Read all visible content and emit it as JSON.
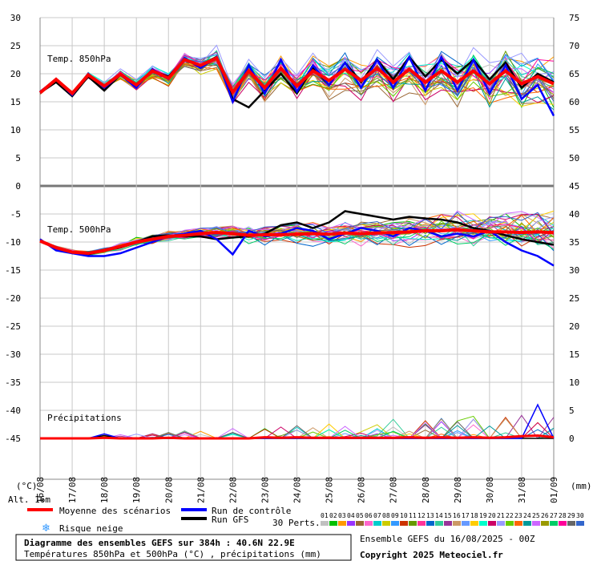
{
  "chart_data": {
    "type": "line",
    "title": "Diagramme des ensembles GEFS sur 384h : 40.6N 22.9E",
    "subtitle": "Températures 850hPa et 500hPa (°C) , précipitations (mm)",
    "run_info": "Ensemble GEFS du 16/08/2025 - 00Z",
    "copyright": "Copyright 2025 Meteociel.fr",
    "altitude": "Alt. 16m",
    "unit_left": "(°C)",
    "unit_right": "(mm)",
    "panel_labels": {
      "t850": "Temp. 850hPa",
      "t500": "Temp. 500hPa",
      "precip": "Précipitations"
    },
    "x_ticks": [
      "16/08",
      "17/08",
      "18/08",
      "19/08",
      "20/08",
      "21/08",
      "22/08",
      "23/08",
      "24/08",
      "25/08",
      "26/08",
      "27/08",
      "28/08",
      "29/08",
      "30/08",
      "31/08",
      "01/09"
    ],
    "x_range_hours": [
      0,
      384
    ],
    "y_left_ticks": [
      30,
      25,
      20,
      15,
      10,
      5,
      0,
      -5,
      -10,
      -15,
      -20,
      -25,
      -30,
      -35,
      -40,
      -45
    ],
    "y_left_range": [
      -45,
      30
    ],
    "y_right_ticks": [
      75,
      70,
      65,
      60,
      55,
      50,
      45,
      40,
      35,
      30,
      25,
      20,
      15,
      10,
      5,
      0
    ],
    "y_right_range": [
      0,
      75
    ],
    "grid": true,
    "series": [
      {
        "name": "Moyenne des scénarios",
        "color": "#ff0000",
        "t850": [
          16.6,
          19,
          16.5,
          19.8,
          17.8,
          19.9,
          18,
          20.5,
          19.2,
          22.5,
          21.5,
          22.8,
          16.7,
          20.5,
          17.5,
          21,
          17.8,
          20.5,
          18.8,
          20.8,
          18.8,
          21,
          18.5,
          20.8,
          18.5,
          20.5,
          18.5,
          20.5,
          18.2,
          20.5,
          18.2,
          19.5,
          18.2
        ],
        "t500": [
          -9.8,
          -11,
          -11.8,
          -12,
          -11.5,
          -10.8,
          -10,
          -9.5,
          -9,
          -8.8,
          -8.5,
          -8.3,
          -8.5,
          -8.8,
          -8.7,
          -8.7,
          -8.6,
          -8.5,
          -8.6,
          -8.4,
          -8.5,
          -8.4,
          -8.3,
          -8.2,
          -8,
          -8,
          -7.8,
          -8,
          -8.2,
          -8.2,
          -8.3,
          -8.2,
          -8.3
        ],
        "precip": [
          0,
          0,
          0,
          0,
          0.1,
          0,
          0,
          0,
          0.1,
          0,
          0,
          0,
          0,
          0,
          0.2,
          0.1,
          0.2,
          0.1,
          0.1,
          0.1,
          0.1,
          0.1,
          0.1,
          0.2,
          0.1,
          0.2,
          0.1,
          0.2,
          0.1,
          0.2,
          0.4,
          0.5,
          0.2
        ]
      },
      {
        "name": "Run de contrôle",
        "color": "#0000ff",
        "t850": [
          16.8,
          19,
          16.2,
          20,
          17.5,
          19.8,
          17.5,
          20.8,
          19,
          22.8,
          21,
          23,
          15,
          21.5,
          16.5,
          22.5,
          16.8,
          21.5,
          18,
          22,
          17.5,
          22.5,
          17.5,
          23,
          17,
          23,
          17,
          22.5,
          16.5,
          21.5,
          15.5,
          18,
          12.5
        ],
        "t500": [
          -9.5,
          -11.5,
          -12,
          -12.5,
          -12.5,
          -12,
          -11,
          -10,
          -9,
          -8.5,
          -8,
          -9.5,
          -12.2,
          -8,
          -9,
          -8.5,
          -7.5,
          -8,
          -9.5,
          -8.5,
          -7.5,
          -8,
          -9,
          -7.5,
          -8,
          -9,
          -8.5,
          -9,
          -8,
          -10,
          -11.5,
          -12.5,
          -14.2
        ],
        "precip": [
          0,
          0,
          0,
          0,
          0.8,
          0,
          0,
          0,
          0,
          0,
          0,
          0,
          0,
          0,
          0,
          0,
          0,
          0,
          0,
          0,
          0,
          0,
          0,
          0,
          0,
          0,
          0,
          0,
          0,
          0,
          0,
          6,
          0
        ]
      },
      {
        "name": "Run GFS",
        "color": "#000000",
        "t850": [
          16.6,
          18.5,
          16,
          19.5,
          17,
          19.8,
          17.8,
          20.5,
          19.5,
          22.5,
          21.5,
          23,
          15.5,
          14,
          17,
          20,
          16.5,
          21,
          18,
          22,
          18.5,
          22.5,
          19,
          23,
          19.5,
          22.5,
          20,
          22.5,
          19,
          22,
          17.5,
          20,
          18.5
        ],
        "t500": [
          -9.8,
          -11,
          -12,
          -12.2,
          -11.5,
          -11,
          -10,
          -9,
          -8.8,
          -9,
          -9,
          -9.5,
          -9.2,
          -9,
          -8.5,
          -7,
          -6.5,
          -7.5,
          -6.5,
          -4.5,
          -5,
          -5.5,
          -6,
          -5.5,
          -5.8,
          -6,
          -6.5,
          -7.5,
          -8,
          -8.8,
          -9.5,
          -10,
          -10.5
        ],
        "precip": [
          0,
          0,
          0,
          0,
          0.5,
          0,
          0,
          0,
          0,
          0,
          0,
          0,
          0,
          0,
          0,
          0,
          0,
          0,
          0,
          0,
          0,
          0,
          0,
          0,
          0,
          0,
          0,
          0,
          0,
          0,
          0,
          0,
          0
        ]
      }
    ],
    "perturbation_count": 30
  },
  "legend": {
    "mean_label": "Moyenne des scénarios",
    "control_label": "Run de contrôle",
    "gfs_label": "Run GFS",
    "perts_label": "30 Perts.",
    "snow_label": "Risque neige",
    "snow_icon": "snowflake-icon"
  },
  "pert_colors": [
    "#c0c0c0",
    "#00c000",
    "#ff9900",
    "#9933ff",
    "#996633",
    "#ff66cc",
    "#00cccc",
    "#cccc00",
    "#3399ff",
    "#cc3300",
    "#669900",
    "#ff3399",
    "#0066cc",
    "#33cc99",
    "#993399",
    "#cc9966",
    "#6699ff",
    "#ffcc00",
    "#00ffcc",
    "#cc0066",
    "#9999ff",
    "#66cc00",
    "#ff6600",
    "#009999",
    "#cc66ff",
    "#999900",
    "#00cc66",
    "#ff0099",
    "#666666",
    "#3366cc"
  ],
  "pert_numbers": [
    "01",
    "02",
    "03",
    "04",
    "05",
    "06",
    "07",
    "08",
    "09",
    "10",
    "11",
    "12",
    "13",
    "14",
    "15",
    "16",
    "17",
    "18",
    "19",
    "20",
    "21",
    "22",
    "23",
    "24",
    "25",
    "26",
    "27",
    "28",
    "29",
    "30"
  ]
}
